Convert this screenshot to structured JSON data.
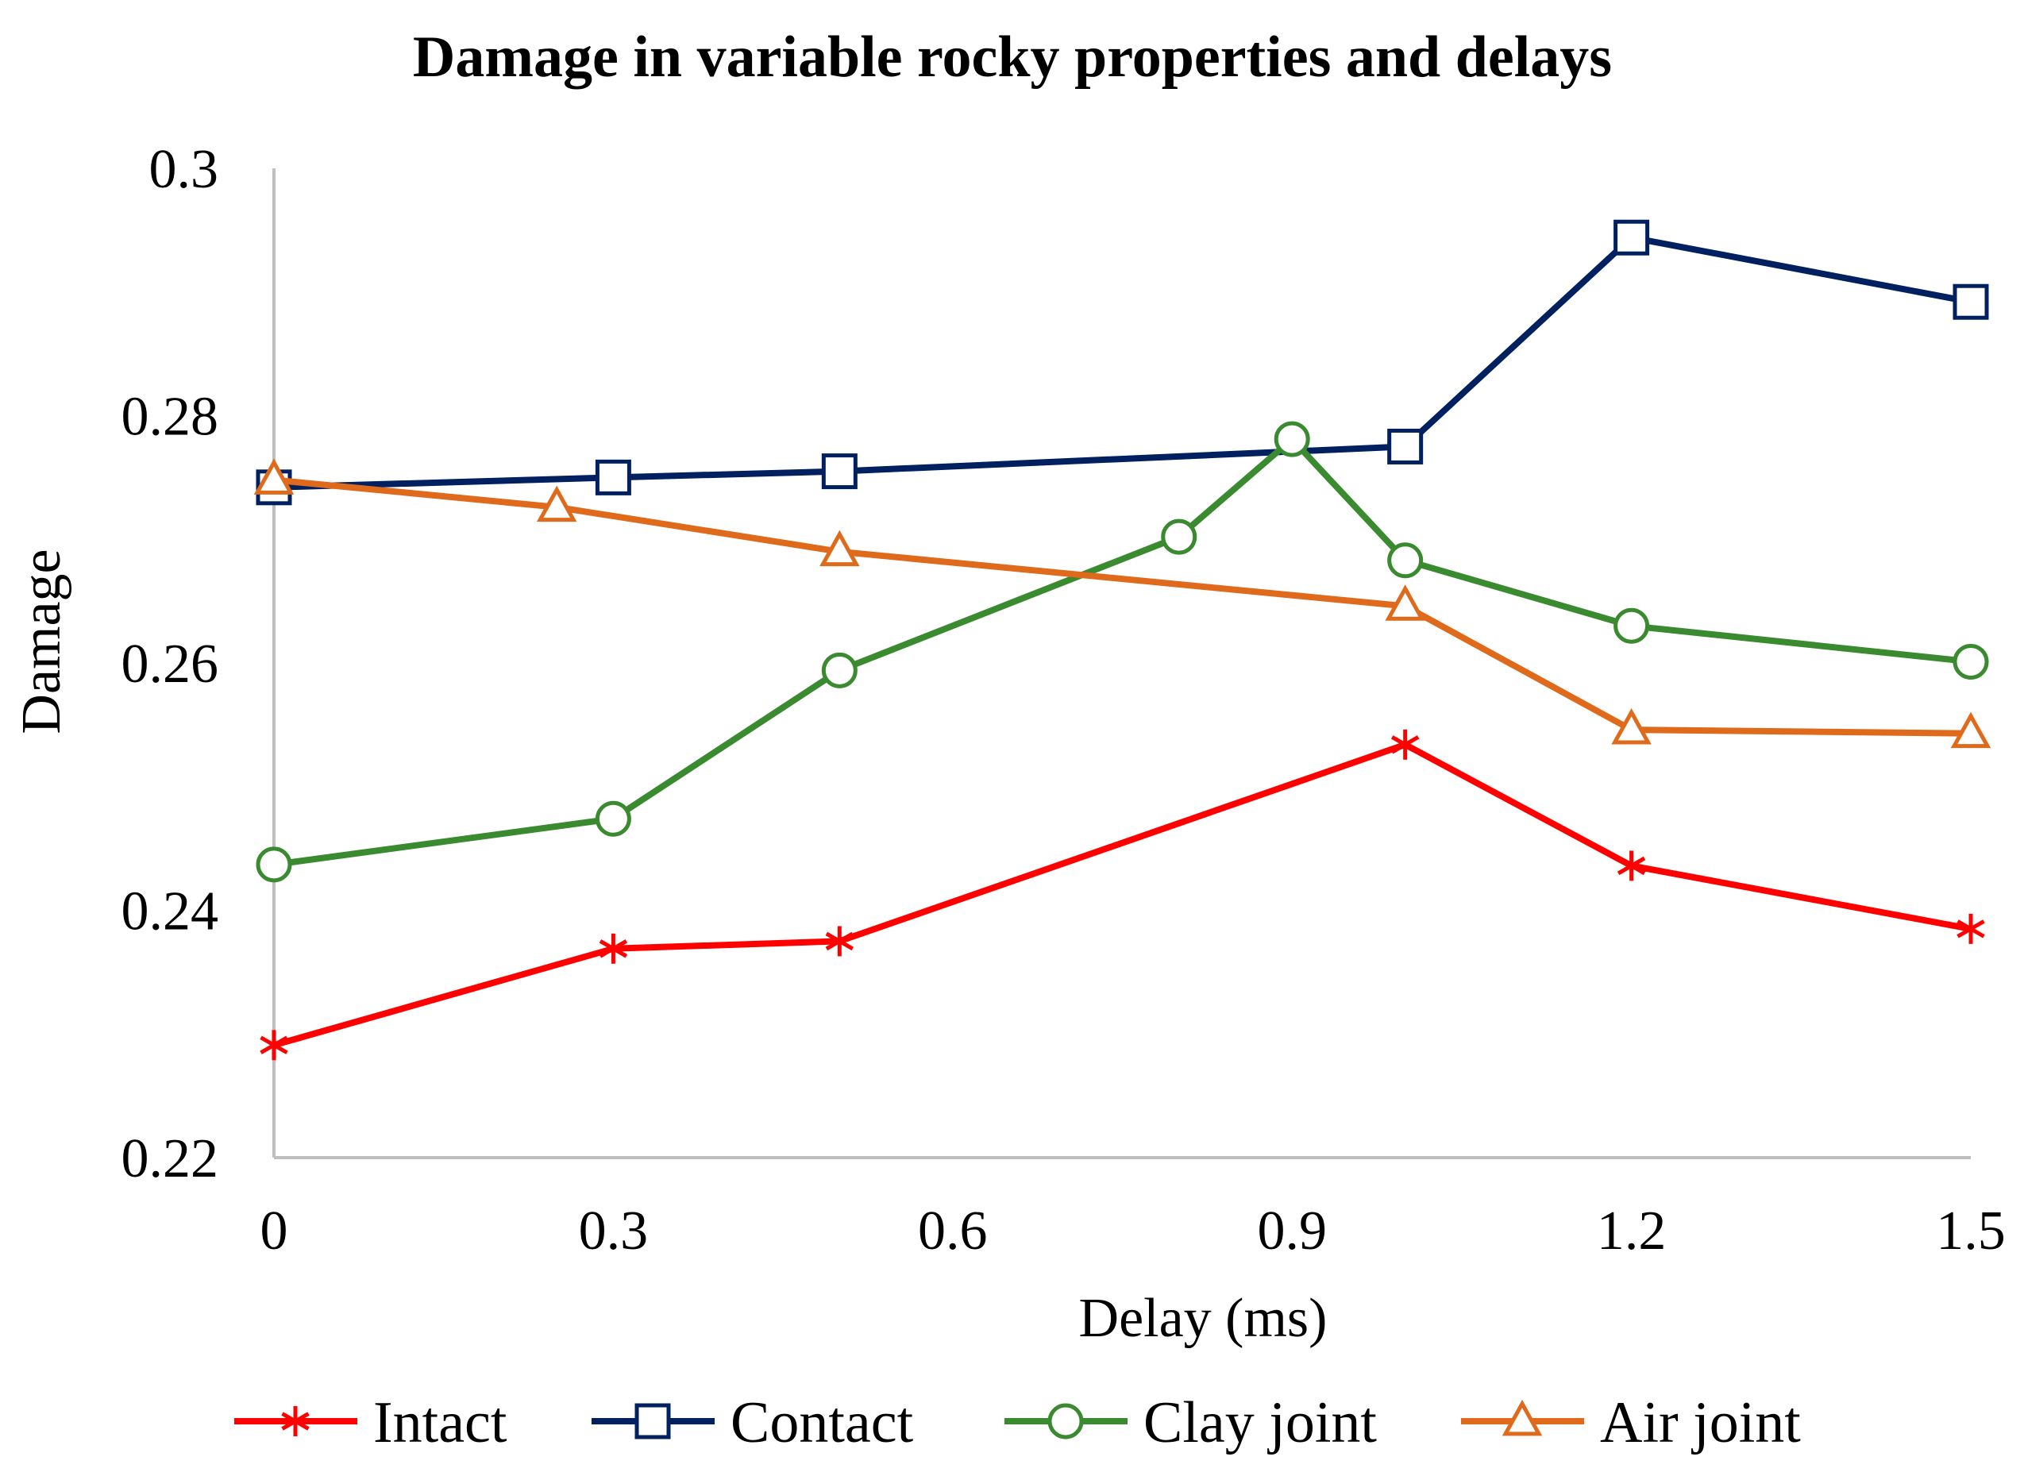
{
  "chart_data": {
    "type": "line",
    "title": "Damage in variable rocky properties and delays",
    "xlabel": "Delay (ms)",
    "ylabel": "Damage",
    "xlim": [
      0,
      1.5
    ],
    "ylim": [
      0.22,
      0.3
    ],
    "x_ticks": [
      "0",
      "0.3",
      "0.6",
      "0.9",
      "1.2",
      "1.5"
    ],
    "x_tick_values": [
      0,
      0.3,
      0.6,
      0.9,
      1.2,
      1.5
    ],
    "y_ticks": [
      "0.22",
      "0.24",
      "0.26",
      "0.28",
      "0.3"
    ],
    "y_tick_values": [
      0.22,
      0.24,
      0.26,
      0.28,
      0.3
    ],
    "grid": false,
    "legend_position": "bottom",
    "series": [
      {
        "name": "Intact",
        "color": "#ff0000",
        "marker": "star",
        "x": [
          0,
          0.3,
          0.5,
          1.0,
          1.2,
          1.5
        ],
        "y": [
          0.2291,
          0.2369,
          0.2375,
          0.2534,
          0.2436,
          0.2385
        ]
      },
      {
        "name": "Contact",
        "color": "#002060",
        "marker": "square",
        "x": [
          0,
          0.3,
          0.5,
          1.0,
          1.2,
          1.5
        ],
        "y": [
          0.2742,
          0.275,
          0.2755,
          0.2775,
          0.2944,
          0.2892
        ]
      },
      {
        "name": "Clay joint",
        "color": "#3a8a2f",
        "marker": "circle",
        "x": [
          0,
          0.3,
          0.5,
          0.8,
          0.9,
          1.0,
          1.2,
          1.5
        ],
        "y": [
          0.2437,
          0.2474,
          0.2594,
          0.2702,
          0.2781,
          0.2683,
          0.263,
          0.2601
        ]
      },
      {
        "name": "Air joint",
        "color": "#e06a1b",
        "marker": "triangle",
        "x": [
          0,
          0.25,
          0.5,
          1.0,
          1.2,
          1.5
        ],
        "y": [
          0.2748,
          0.2726,
          0.269,
          0.2646,
          0.2546,
          0.2543
        ]
      }
    ]
  }
}
